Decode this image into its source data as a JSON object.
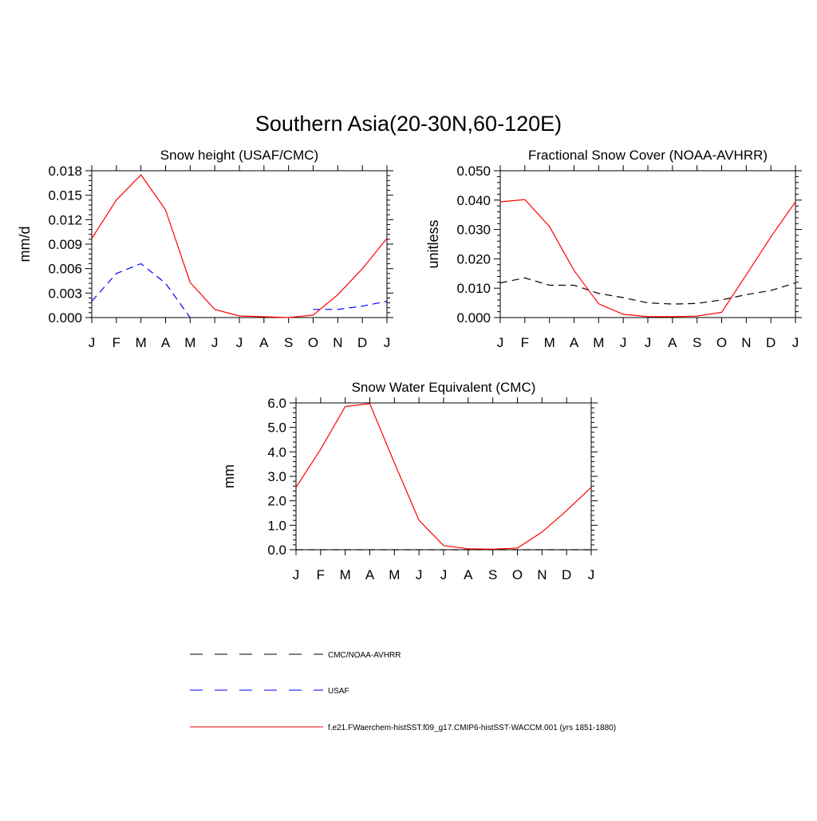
{
  "main_title": "Southern Asia(20-30N,60-120E)",
  "colors": {
    "obs": "#000000",
    "usaf": "#0000ff",
    "model": "#ff0000"
  },
  "chart_data": [
    {
      "type": "line",
      "title": "Snow height (USAF/CMC)",
      "ylabel": "mm/d",
      "xlabel": "",
      "categories": [
        "J",
        "F",
        "M",
        "A",
        "M",
        "J",
        "J",
        "A",
        "S",
        "O",
        "N",
        "D",
        "J"
      ],
      "ylim": [
        0,
        0.018
      ],
      "yticks": [
        "0.000",
        "0.003",
        "0.006",
        "0.009",
        "0.012",
        "0.015",
        "0.018"
      ],
      "series": [
        {
          "name": "USAF",
          "color": "#0000ff",
          "dash": "dashed",
          "values": [
            0.002,
            0.0054,
            0.0066,
            0.0042,
            0.0,
            null,
            null,
            null,
            null,
            0.001,
            0.001,
            0.0014,
            0.002
          ]
        },
        {
          "name": "f.e21.FWaerchem-histSST.f09_g17.CMIP6-histSST-WACCM.001 (yrs 1851-1880)",
          "color": "#ff0000",
          "dash": "solid",
          "values": [
            0.0097,
            0.0144,
            0.0175,
            0.0132,
            0.0043,
            0.001,
            0.0002,
            0.0001,
            0.0,
            0.0003,
            0.0028,
            0.006,
            0.0097
          ]
        }
      ]
    },
    {
      "type": "line",
      "title": "Fractional Snow Cover (NOAA-AVHRR)",
      "ylabel": "unitless",
      "xlabel": "",
      "categories": [
        "J",
        "F",
        "M",
        "A",
        "M",
        "J",
        "J",
        "A",
        "S",
        "O",
        "N",
        "D",
        "J"
      ],
      "ylim": [
        0,
        0.05
      ],
      "yticks": [
        "0.000",
        "0.010",
        "0.020",
        "0.030",
        "0.040",
        "0.050"
      ],
      "series": [
        {
          "name": "CMC/NOAA-AVHRR",
          "color": "#000000",
          "dash": "dashed",
          "values": [
            0.0118,
            0.0135,
            0.011,
            0.011,
            0.0082,
            0.0068,
            0.005,
            0.0046,
            0.0048,
            0.006,
            0.0078,
            0.0092,
            0.0118
          ]
        },
        {
          "name": "f.e21.FWaerchem-histSST.f09_g17.CMIP6-histSST-WACCM.001 (yrs 1851-1880)",
          "color": "#ff0000",
          "dash": "solid",
          "values": [
            0.0394,
            0.0402,
            0.031,
            0.016,
            0.0047,
            0.0011,
            0.0003,
            0.0003,
            0.0005,
            0.0018,
            0.0145,
            0.0275,
            0.0394
          ]
        }
      ]
    },
    {
      "type": "line",
      "title": "Snow Water Equivalent (CMC)",
      "ylabel": "mm",
      "xlabel": "",
      "categories": [
        "J",
        "F",
        "M",
        "A",
        "M",
        "J",
        "J",
        "A",
        "S",
        "O",
        "N",
        "D",
        "J"
      ],
      "ylim": [
        0,
        6
      ],
      "yticks": [
        "0.0",
        "1.0",
        "2.0",
        "3.0",
        "4.0",
        "5.0",
        "6.0"
      ],
      "series": [
        {
          "name": "CMC/NOAA-AVHRR",
          "color": "#000000",
          "dash": "dashed",
          "values": [
            0,
            0,
            0,
            0,
            0,
            0,
            0,
            0,
            0,
            0,
            0,
            0,
            0
          ]
        },
        {
          "name": "f.e21.FWaerchem-histSST.f09_g17.CMIP6-histSST-WACCM.001 (yrs 1851-1880)",
          "color": "#ff0000",
          "dash": "solid",
          "values": [
            2.55,
            4.1,
            5.85,
            5.97,
            3.55,
            1.2,
            0.17,
            0.04,
            0.02,
            0.07,
            0.72,
            1.6,
            2.55
          ]
        }
      ]
    }
  ],
  "legend": {
    "placement": "bottom",
    "items": [
      {
        "label": "CMC/NOAA-AVHRR",
        "color": "#000000",
        "dash": "dashed"
      },
      {
        "label": "USAF",
        "color": "#0000ff",
        "dash": "dashed"
      },
      {
        "label": "f.e21.FWaerchem-histSST.f09_g17.CMIP6-histSST-WACCM.001 (yrs 1851-1880)",
        "color": "#ff0000",
        "dash": "solid"
      }
    ]
  }
}
